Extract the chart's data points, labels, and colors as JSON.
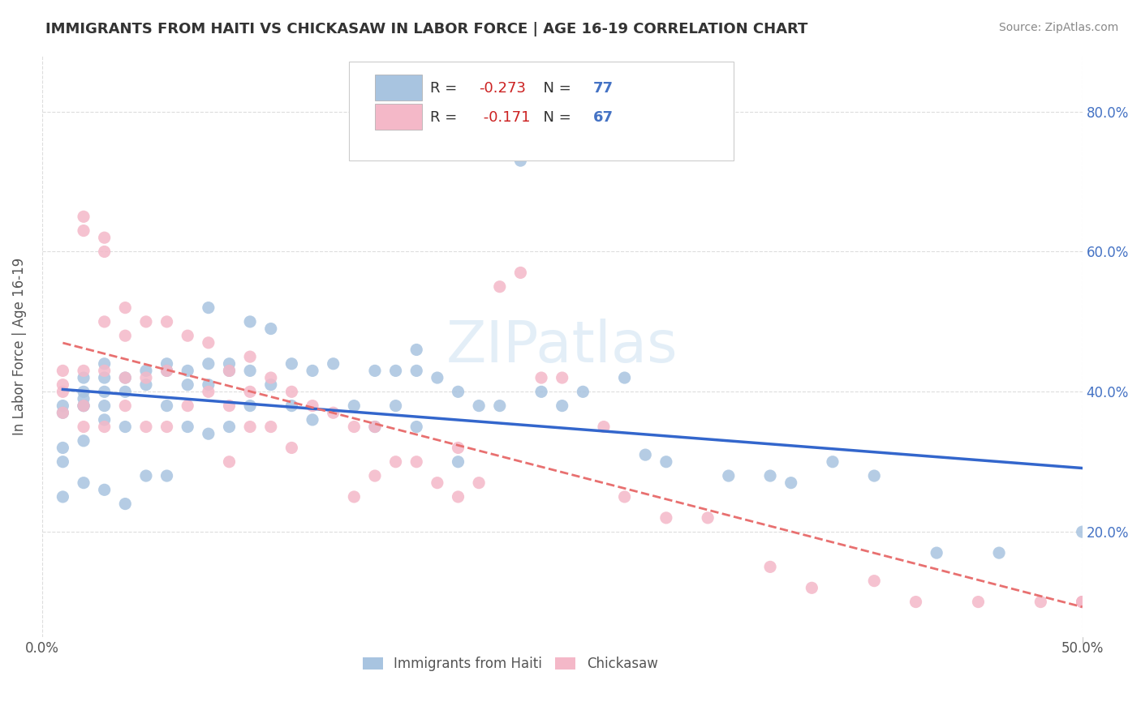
{
  "title": "IMMIGRANTS FROM HAITI VS CHICKASAW IN LABOR FORCE | AGE 16-19 CORRELATION CHART",
  "source": "Source: ZipAtlas.com",
  "xlabel_bottom": "",
  "ylabel": "In Labor Force | Age 16-19",
  "x_label_bottom_left": "0.0%",
  "x_label_bottom_right": "50.0%",
  "legend_haiti": "Immigrants from Haiti",
  "legend_chickasaw": "Chickasaw",
  "r_haiti": -0.273,
  "n_haiti": 77,
  "r_chickasaw": -0.171,
  "n_chickasaw": 67,
  "xlim": [
    0.0,
    0.5
  ],
  "ylim": [
    0.05,
    0.88
  ],
  "yticks": [
    0.2,
    0.4,
    0.6,
    0.8
  ],
  "ytick_labels": [
    "20.0%",
    "40.0%",
    "60.0%",
    "80.0%"
  ],
  "xticks": [
    0.0,
    0.1,
    0.2,
    0.3,
    0.4,
    0.5
  ],
  "xtick_labels": [
    "0.0%",
    "",
    "",
    "",
    "",
    "50.0%"
  ],
  "color_haiti": "#a8c4e0",
  "color_chickasaw": "#f4b8c8",
  "color_haiti_line": "#3366cc",
  "color_chickasaw_line": "#e87070",
  "color_chickasaw_line_dashed": "#f4b8c8",
  "background_color": "#ffffff",
  "grid_color": "#dddddd",
  "haiti_x": [
    0.01,
    0.01,
    0.01,
    0.01,
    0.01,
    0.02,
    0.02,
    0.02,
    0.02,
    0.02,
    0.02,
    0.02,
    0.03,
    0.03,
    0.03,
    0.03,
    0.03,
    0.03,
    0.04,
    0.04,
    0.04,
    0.04,
    0.05,
    0.05,
    0.05,
    0.06,
    0.06,
    0.06,
    0.06,
    0.07,
    0.07,
    0.07,
    0.08,
    0.08,
    0.08,
    0.08,
    0.09,
    0.09,
    0.09,
    0.1,
    0.1,
    0.1,
    0.11,
    0.11,
    0.12,
    0.12,
    0.13,
    0.13,
    0.14,
    0.15,
    0.16,
    0.16,
    0.17,
    0.17,
    0.18,
    0.18,
    0.18,
    0.19,
    0.2,
    0.2,
    0.21,
    0.22,
    0.23,
    0.24,
    0.25,
    0.26,
    0.28,
    0.29,
    0.3,
    0.33,
    0.35,
    0.36,
    0.38,
    0.4,
    0.43,
    0.46,
    0.5
  ],
  "haiti_y": [
    0.38,
    0.37,
    0.32,
    0.3,
    0.25,
    0.42,
    0.4,
    0.39,
    0.38,
    0.38,
    0.33,
    0.27,
    0.44,
    0.42,
    0.4,
    0.38,
    0.36,
    0.26,
    0.42,
    0.4,
    0.35,
    0.24,
    0.43,
    0.41,
    0.28,
    0.44,
    0.43,
    0.38,
    0.28,
    0.43,
    0.41,
    0.35,
    0.52,
    0.44,
    0.41,
    0.34,
    0.44,
    0.43,
    0.35,
    0.5,
    0.43,
    0.38,
    0.49,
    0.41,
    0.44,
    0.38,
    0.43,
    0.36,
    0.44,
    0.38,
    0.43,
    0.35,
    0.43,
    0.38,
    0.46,
    0.43,
    0.35,
    0.42,
    0.4,
    0.3,
    0.38,
    0.38,
    0.73,
    0.4,
    0.38,
    0.4,
    0.42,
    0.31,
    0.3,
    0.28,
    0.28,
    0.27,
    0.3,
    0.28,
    0.17,
    0.17,
    0.2
  ],
  "chickasaw_x": [
    0.01,
    0.01,
    0.01,
    0.01,
    0.02,
    0.02,
    0.02,
    0.02,
    0.02,
    0.03,
    0.03,
    0.03,
    0.03,
    0.03,
    0.04,
    0.04,
    0.04,
    0.04,
    0.05,
    0.05,
    0.05,
    0.06,
    0.06,
    0.06,
    0.07,
    0.07,
    0.08,
    0.08,
    0.09,
    0.09,
    0.09,
    0.1,
    0.1,
    0.1,
    0.11,
    0.11,
    0.12,
    0.12,
    0.13,
    0.14,
    0.15,
    0.15,
    0.16,
    0.16,
    0.17,
    0.18,
    0.19,
    0.2,
    0.2,
    0.21,
    0.22,
    0.23,
    0.24,
    0.25,
    0.27,
    0.28,
    0.3,
    0.32,
    0.35,
    0.37,
    0.4,
    0.42,
    0.45,
    0.48,
    0.5,
    0.5,
    0.5
  ],
  "chickasaw_y": [
    0.43,
    0.41,
    0.4,
    0.37,
    0.65,
    0.63,
    0.43,
    0.38,
    0.35,
    0.62,
    0.6,
    0.5,
    0.43,
    0.35,
    0.52,
    0.48,
    0.42,
    0.38,
    0.5,
    0.42,
    0.35,
    0.5,
    0.43,
    0.35,
    0.48,
    0.38,
    0.47,
    0.4,
    0.43,
    0.38,
    0.3,
    0.45,
    0.4,
    0.35,
    0.42,
    0.35,
    0.4,
    0.32,
    0.38,
    0.37,
    0.35,
    0.25,
    0.35,
    0.28,
    0.3,
    0.3,
    0.27,
    0.32,
    0.25,
    0.27,
    0.55,
    0.57,
    0.42,
    0.42,
    0.35,
    0.25,
    0.22,
    0.22,
    0.15,
    0.12,
    0.13,
    0.1,
    0.1,
    0.1,
    0.1,
    0.1,
    0.1
  ]
}
